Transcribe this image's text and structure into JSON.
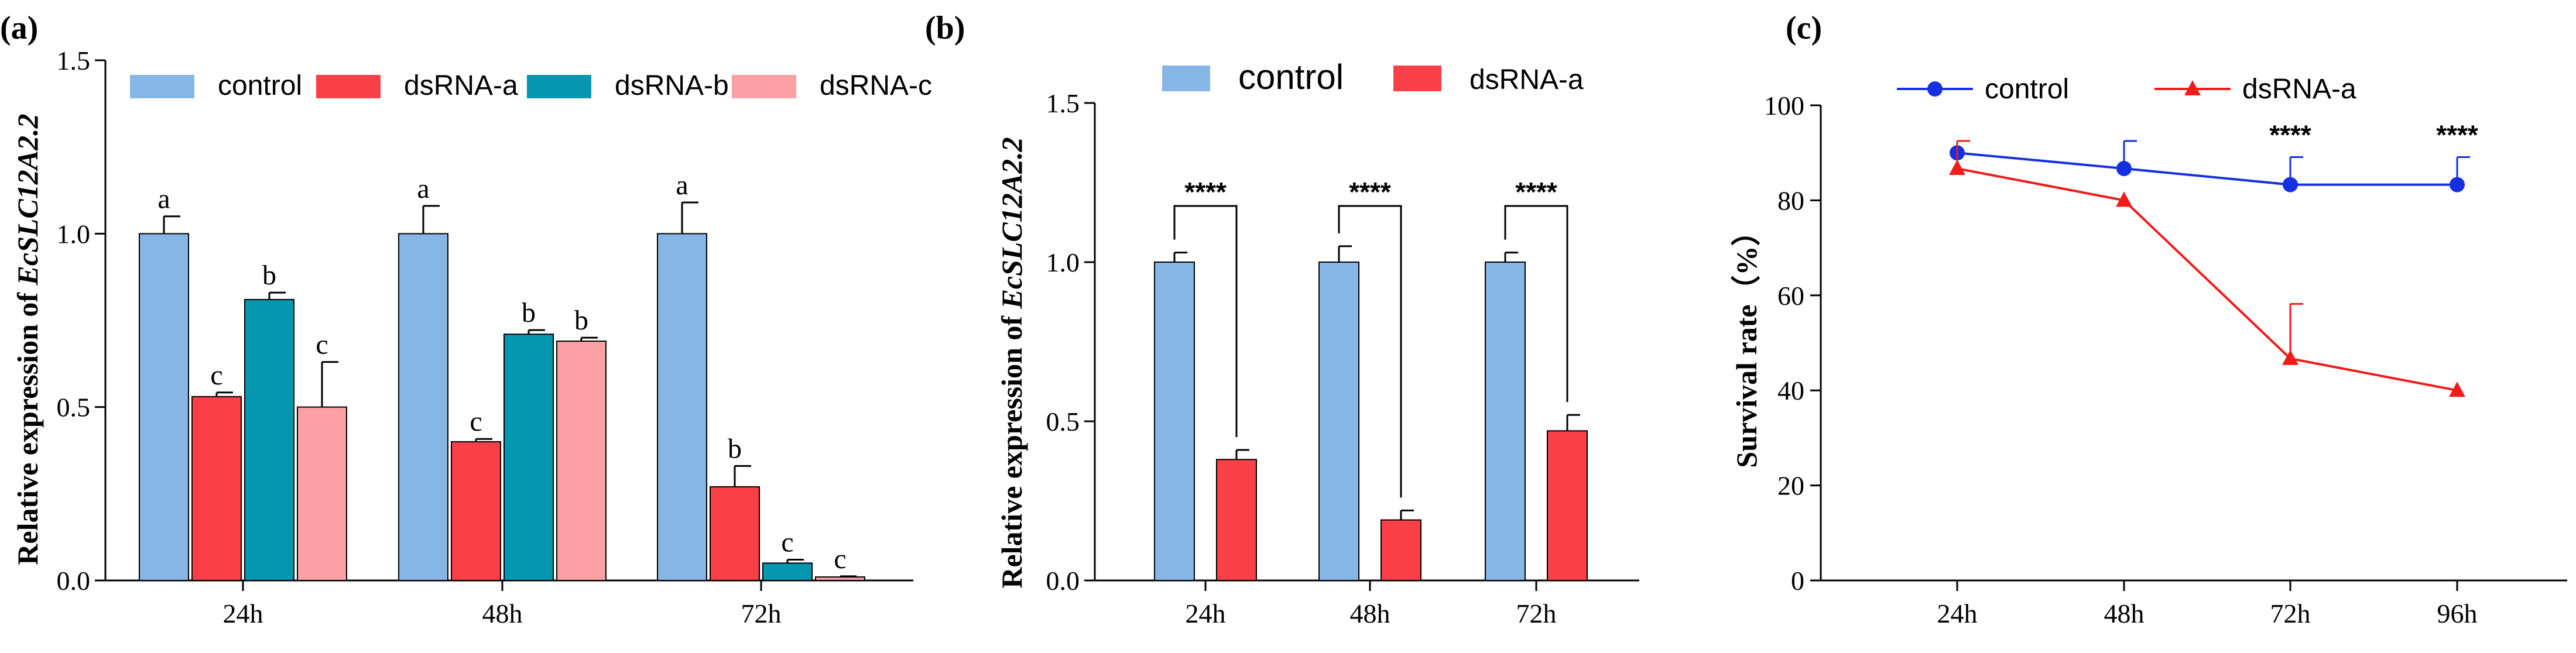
{
  "colors": {
    "control": "#86b6e6",
    "dsRNA-a": "#fb3f46",
    "dsRNA-b": "#0597b0",
    "dsRNA-c": "#fba1a6",
    "line_control": "#1530e0",
    "line_dsRNA-a": "#f01b1b"
  },
  "chart_data": [
    {
      "id": "a",
      "type": "bar",
      "panel_label": "(a)",
      "ylabel_prefix": "Relative expression of ",
      "ylabel_gene": "EcSLC12A2.2",
      "ylim": [
        0,
        1.5
      ],
      "yticks": [
        "0.0",
        "0.5",
        "1.0",
        "1.5"
      ],
      "categories": [
        "24h",
        "48h",
        "72h"
      ],
      "legend_placement": "top",
      "series": [
        {
          "name": "control",
          "values": [
            1.0,
            1.0,
            1.0
          ],
          "errors": [
            0.05,
            0.08,
            0.09
          ],
          "letters": [
            "a",
            "a",
            "a"
          ]
        },
        {
          "name": "dsRNA-a",
          "values": [
            0.53,
            0.4,
            0.27
          ],
          "errors": [
            0.012,
            0.008,
            0.06
          ],
          "letters": [
            "c",
            "c",
            "b"
          ]
        },
        {
          "name": "dsRNA-b",
          "values": [
            0.81,
            0.71,
            0.05
          ],
          "errors": [
            0.02,
            0.012,
            0.01
          ],
          "letters": [
            "b",
            "b",
            "c"
          ]
        },
        {
          "name": "dsRNA-c",
          "values": [
            0.5,
            0.69,
            0.01
          ],
          "errors": [
            0.13,
            0.01,
            0.002
          ],
          "letters": [
            "c",
            "b",
            "c"
          ]
        }
      ]
    },
    {
      "id": "b",
      "type": "bar",
      "panel_label": "(b)",
      "ylabel_prefix": "Relative expression of  ",
      "ylabel_gene": "EcSLC12A2.2",
      "ylim": [
        0,
        1.5
      ],
      "yticks": [
        "0.0",
        "0.5",
        "1.0",
        "1.5"
      ],
      "categories": [
        "24h",
        "48h",
        "72h"
      ],
      "legend_placement": "top",
      "significance": [
        "****",
        "****",
        "****"
      ],
      "series": [
        {
          "name": "control",
          "values": [
            1.0,
            1.0,
            1.0
          ],
          "errors": [
            0.03,
            0.05,
            0.03
          ]
        },
        {
          "name": "dsRNA-a",
          "values": [
            0.38,
            0.19,
            0.47
          ],
          "errors": [
            0.03,
            0.03,
            0.05
          ]
        }
      ]
    },
    {
      "id": "c",
      "type": "line",
      "panel_label": "(c)",
      "ylabel": "Survival rate（%）",
      "ylim": [
        0,
        100
      ],
      "yticks": [
        "0",
        "20",
        "40",
        "60",
        "80",
        "100"
      ],
      "categories": [
        "24h",
        "48h",
        "72h",
        "96h"
      ],
      "legend_placement": "top",
      "significance": [
        "",
        "",
        "****",
        "****"
      ],
      "series": [
        {
          "name": "control",
          "values": [
            90,
            86.7,
            83.3,
            83.3
          ],
          "errors": [
            0,
            5.8,
            5.8,
            5.8
          ],
          "marker": "circle"
        },
        {
          "name": "dsRNA-a",
          "values": [
            86.7,
            80,
            46.7,
            40
          ],
          "errors": [
            5.8,
            0,
            11.5,
            0
          ],
          "marker": "triangle"
        }
      ]
    }
  ]
}
